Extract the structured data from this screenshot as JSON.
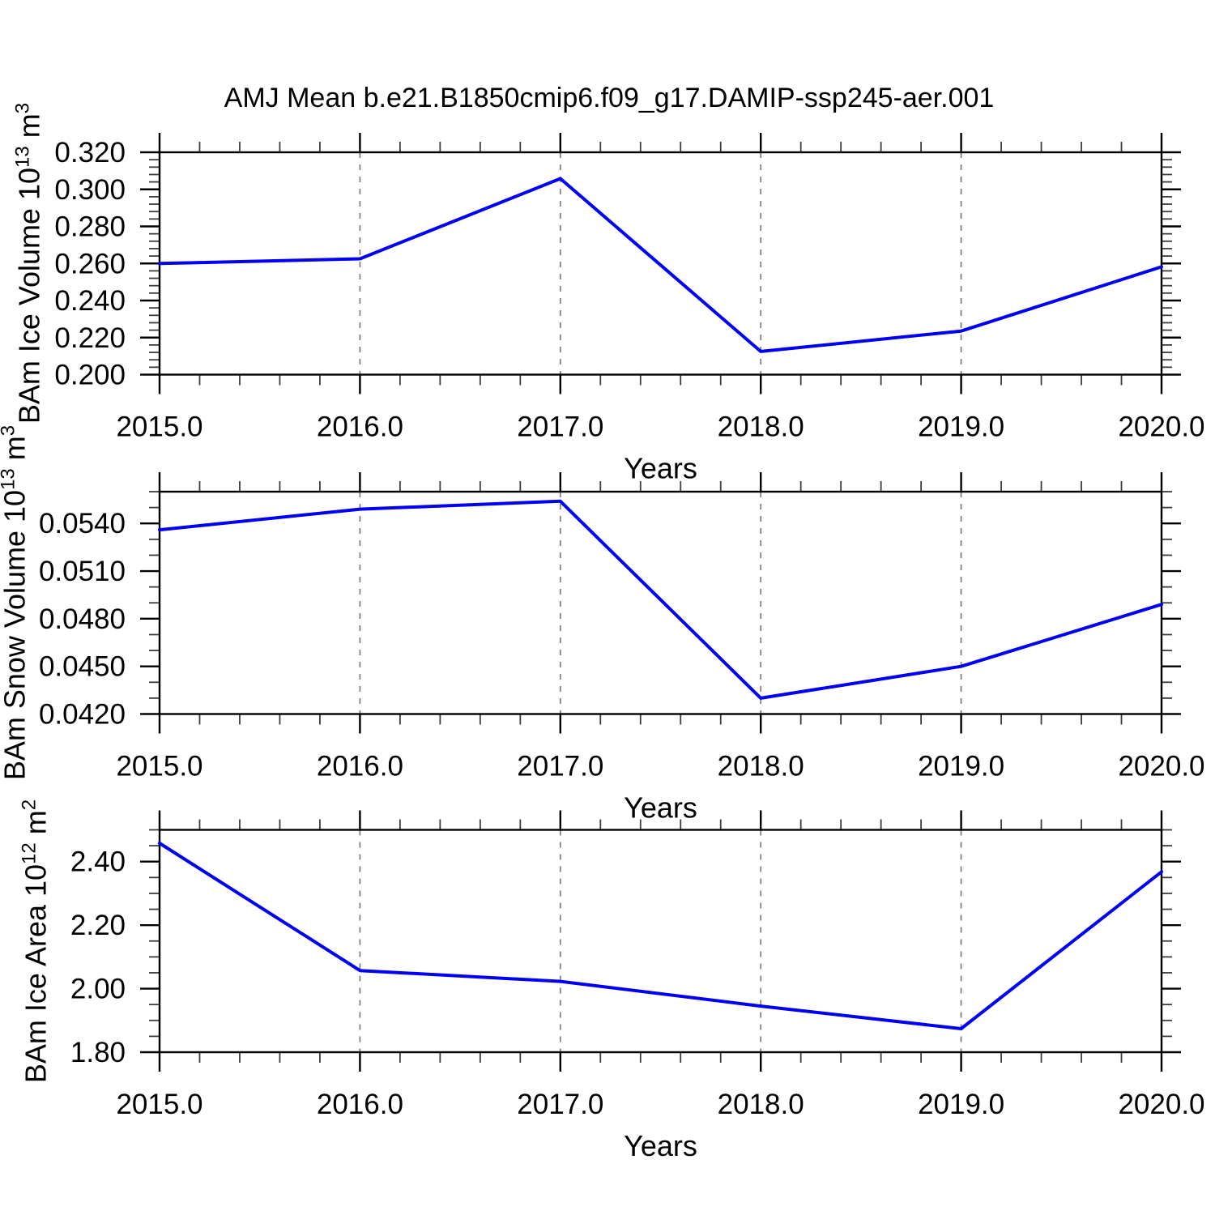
{
  "title": "AMJ Mean b.e21.B1850cmip6.f09_g17.DAMIP-ssp245-aer.001",
  "accent_color": "#0000f2",
  "chart_data": [
    {
      "type": "line",
      "x": [
        2015,
        2016,
        2017,
        2018,
        2019,
        2020
      ],
      "values": [
        0.26,
        0.2625,
        0.3058,
        0.2125,
        0.2235,
        0.2582
      ],
      "xlabel": "Years",
      "ylabel": "BAm Ice Volume 10^13 m^3",
      "ylabel_parts": {
        "base": "BAm Ice Volume 10",
        "exp": "13",
        "unit": " m",
        "unit_exp": "3"
      },
      "xlim": [
        2015,
        2020
      ],
      "ylim": [
        0.2,
        0.32
      ],
      "xticks": {
        "majors": [
          2015,
          2016,
          2017,
          2018,
          2019,
          2020
        ],
        "labels": [
          "2015.0",
          "2016.0",
          "2017.0",
          "2018.0",
          "2019.0",
          "2020.0"
        ],
        "minor_step": 0.2
      },
      "yticks": {
        "majors": [
          0.2,
          0.22,
          0.24,
          0.26,
          0.28,
          0.3,
          0.32
        ],
        "labels": [
          "0.200",
          "0.220",
          "0.240",
          "0.260",
          "0.280",
          "0.300",
          "0.320"
        ],
        "minor_step": 0.004
      },
      "gridlines_x": [
        2016,
        2017,
        2018,
        2019
      ],
      "line_color": "#0000f2",
      "grid_on": "vertical-dashed",
      "legend": "none"
    },
    {
      "type": "line",
      "x": [
        2015,
        2016,
        2017,
        2018,
        2019,
        2020
      ],
      "values": [
        0.0536,
        0.0549,
        0.0554,
        0.043,
        0.045,
        0.0489
      ],
      "xlabel": "Years",
      "ylabel": "BAm Snow Volume 10^13 m^3",
      "ylabel_parts": {
        "base": "BAm Snow Volume 10",
        "exp": "13",
        "unit": " m",
        "unit_exp": "3"
      },
      "xlim": [
        2015,
        2020
      ],
      "ylim": [
        0.042,
        0.056
      ],
      "xticks": {
        "majors": [
          2015,
          2016,
          2017,
          2018,
          2019,
          2020
        ],
        "labels": [
          "2015.0",
          "2016.0",
          "2017.0",
          "2018.0",
          "2019.0",
          "2020.0"
        ],
        "minor_step": 0.2
      },
      "yticks": {
        "majors": [
          0.042,
          0.045,
          0.048,
          0.051,
          0.054
        ],
        "labels": [
          "0.0420",
          "0.0450",
          "0.0480",
          "0.0510",
          "0.0540"
        ],
        "minor_step": 0.001
      },
      "gridlines_x": [
        2016,
        2017,
        2018,
        2019
      ],
      "line_color": "#0000f2",
      "grid_on": "vertical-dashed",
      "legend": "none"
    },
    {
      "type": "line",
      "x": [
        2015,
        2016,
        2017,
        2018,
        2019,
        2020
      ],
      "values": [
        2.458,
        2.057,
        2.023,
        1.945,
        1.874,
        2.368
      ],
      "xlabel": "Years",
      "ylabel": "BAm Ice Area 10^12 m^2",
      "ylabel_parts": {
        "base": "BAm Ice Area 10",
        "exp": "12",
        "unit": " m",
        "unit_exp": "2"
      },
      "xlim": [
        2015,
        2020
      ],
      "ylim": [
        1.8,
        2.5
      ],
      "xticks": {
        "majors": [
          2015,
          2016,
          2017,
          2018,
          2019,
          2020
        ],
        "labels": [
          "2015.0",
          "2016.0",
          "2017.0",
          "2018.0",
          "2019.0",
          "2020.0"
        ],
        "minor_step": 0.2
      },
      "yticks": {
        "majors": [
          1.8,
          2.0,
          2.2,
          2.4
        ],
        "labels": [
          "1.80",
          "2.00",
          "2.20",
          "2.40"
        ],
        "minor_step": 0.05
      },
      "gridlines_x": [
        2016,
        2017,
        2018,
        2019
      ],
      "line_color": "#0000f2",
      "grid_on": "vertical-dashed",
      "legend": "none"
    }
  ]
}
